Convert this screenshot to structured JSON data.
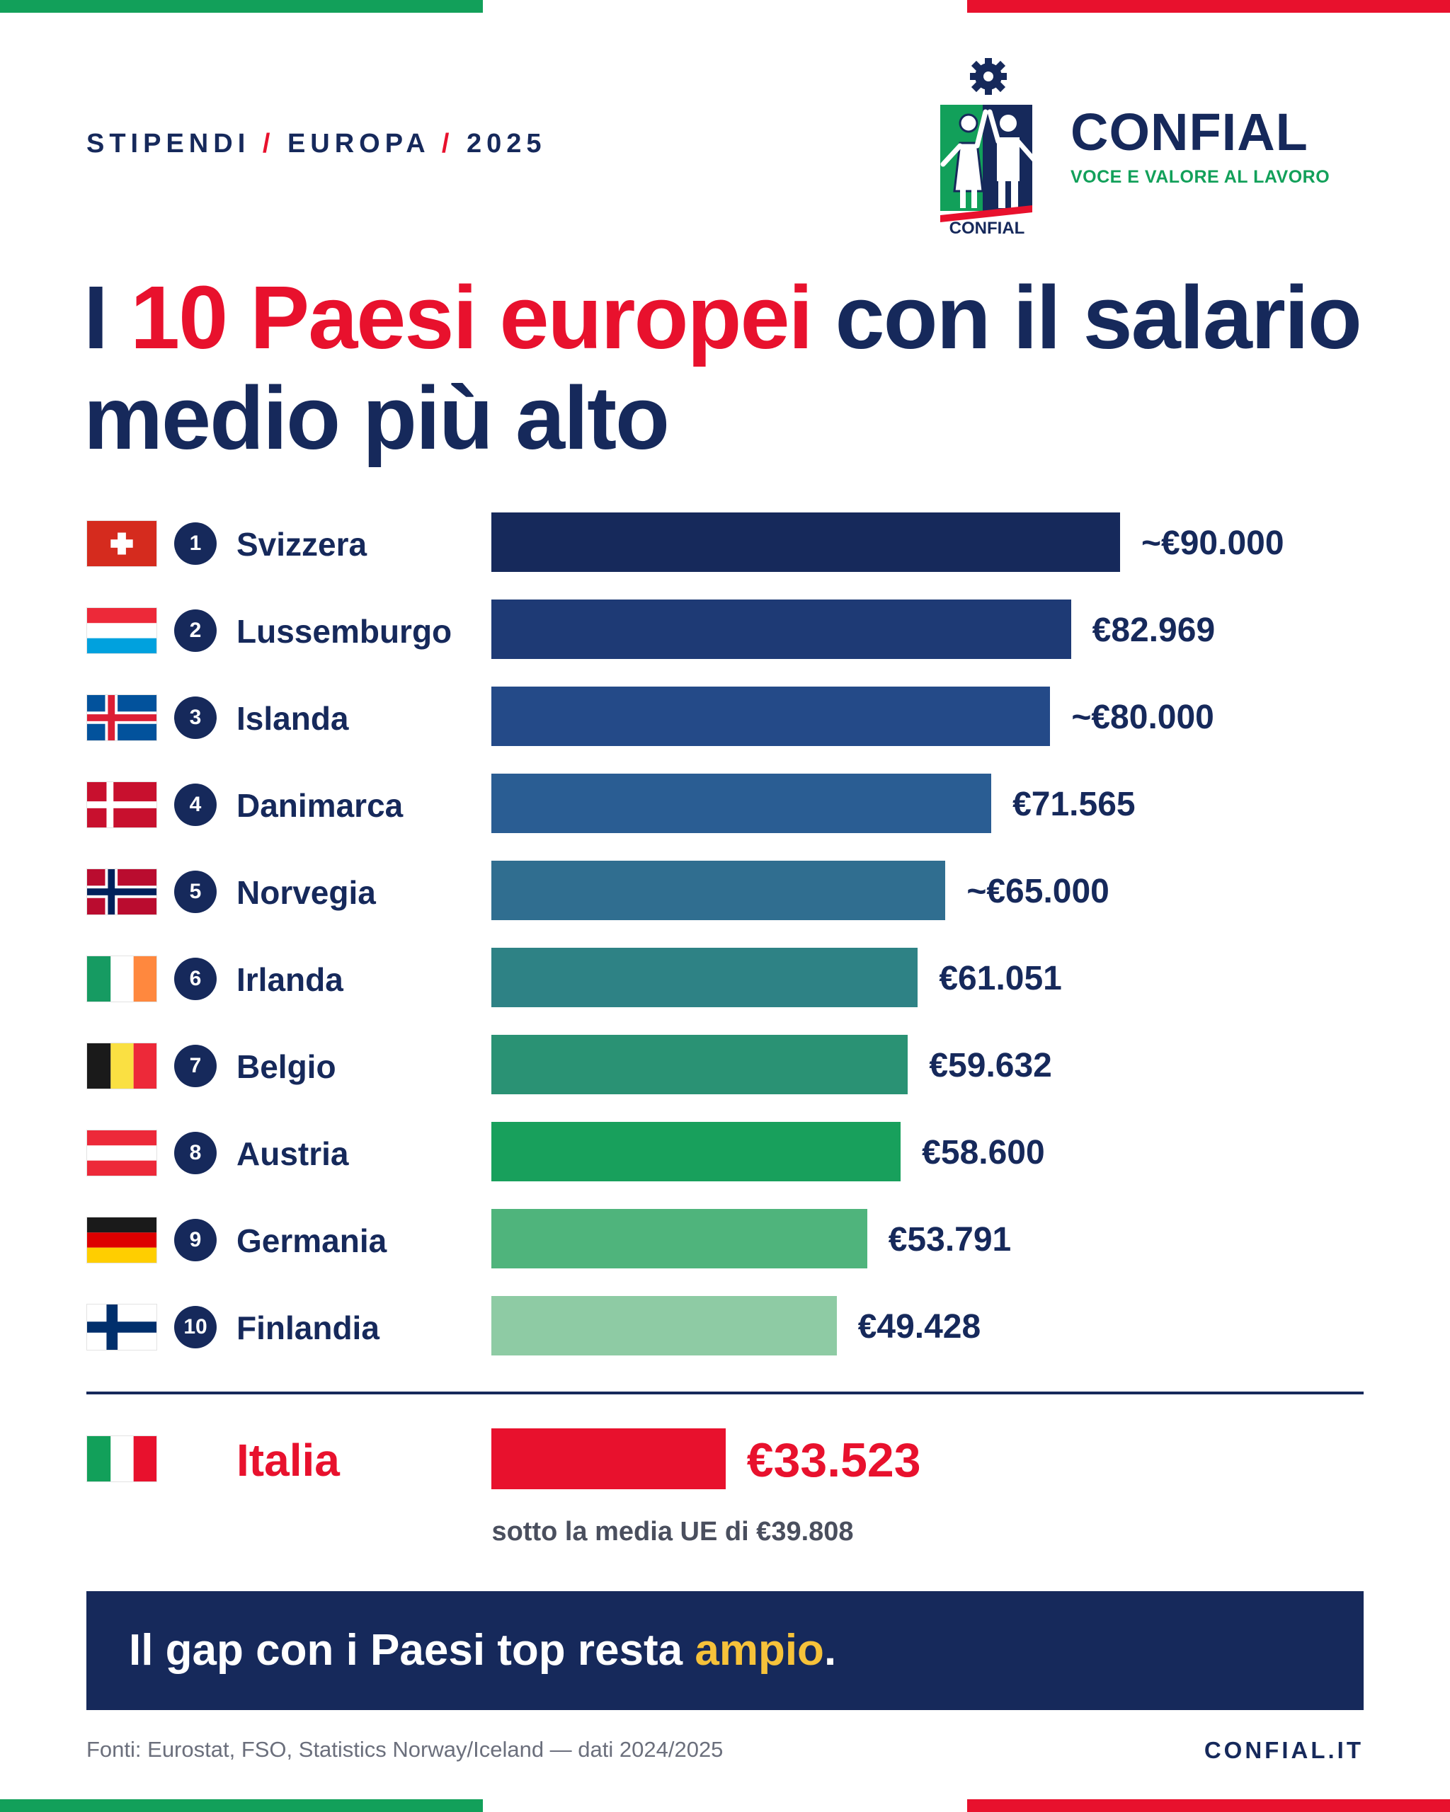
{
  "header": {
    "kicker_parts": [
      "STIPENDI",
      "EUROPA",
      "2025"
    ],
    "brand_name": "CONFIAL",
    "brand_tagline": "VOCE E VALORE AL LAVORO",
    "logo_text": "CONFIAL"
  },
  "title": {
    "prefix": "I ",
    "highlight": "10 Paesi europei",
    "suffix": " con il salario medio più alto"
  },
  "chart_data": {
    "type": "bar",
    "orientation": "horizontal",
    "categories": [
      "Svizzera",
      "Lussemburgo",
      "Islanda",
      "Danimarca",
      "Norvegia",
      "Irlanda",
      "Belgio",
      "Austria",
      "Germania",
      "Finlandia"
    ],
    "ranks": [
      "1",
      "2",
      "3",
      "4",
      "5",
      "6",
      "7",
      "8",
      "9",
      "10"
    ],
    "values": [
      90000,
      82969,
      80000,
      71565,
      65000,
      61051,
      59632,
      58600,
      53791,
      49428
    ],
    "value_labels": [
      "~€90.000",
      "€82.969",
      "~€80.000",
      "€71.565",
      "~€65.000",
      "€61.051",
      "€59.632",
      "€58.600",
      "€53.791",
      "€49.428"
    ],
    "flags": [
      "switzerland-flag",
      "luxembourg-flag",
      "iceland-flag",
      "denmark-flag",
      "norway-flag",
      "ireland-flag",
      "belgium-flag",
      "austria-flag",
      "germany-flag",
      "finland-flag"
    ],
    "bar_colors": [
      "#16295b",
      "#1e3a75",
      "#244a88",
      "#2a5d93",
      "#306e90",
      "#2e8285",
      "#2a9274",
      "#18a05c",
      "#4fb47c",
      "#8ecba4"
    ],
    "xlim": [
      0,
      90000
    ],
    "comparison": {
      "name": "Italia",
      "value": 33523,
      "value_label": "€33.523",
      "color": "#e8112d",
      "flag": "italy-flag"
    }
  },
  "note": "sotto la media UE di €39.808",
  "banner": {
    "prefix": "Il gap con i Paesi top resta ",
    "highlight": "ampio",
    "suffix": "."
  },
  "footer": {
    "source": "Fonti: Eurostat, FSO, Statistics Norway/Iceland — dati 2024/2025",
    "site": "CONFIAL.IT"
  }
}
